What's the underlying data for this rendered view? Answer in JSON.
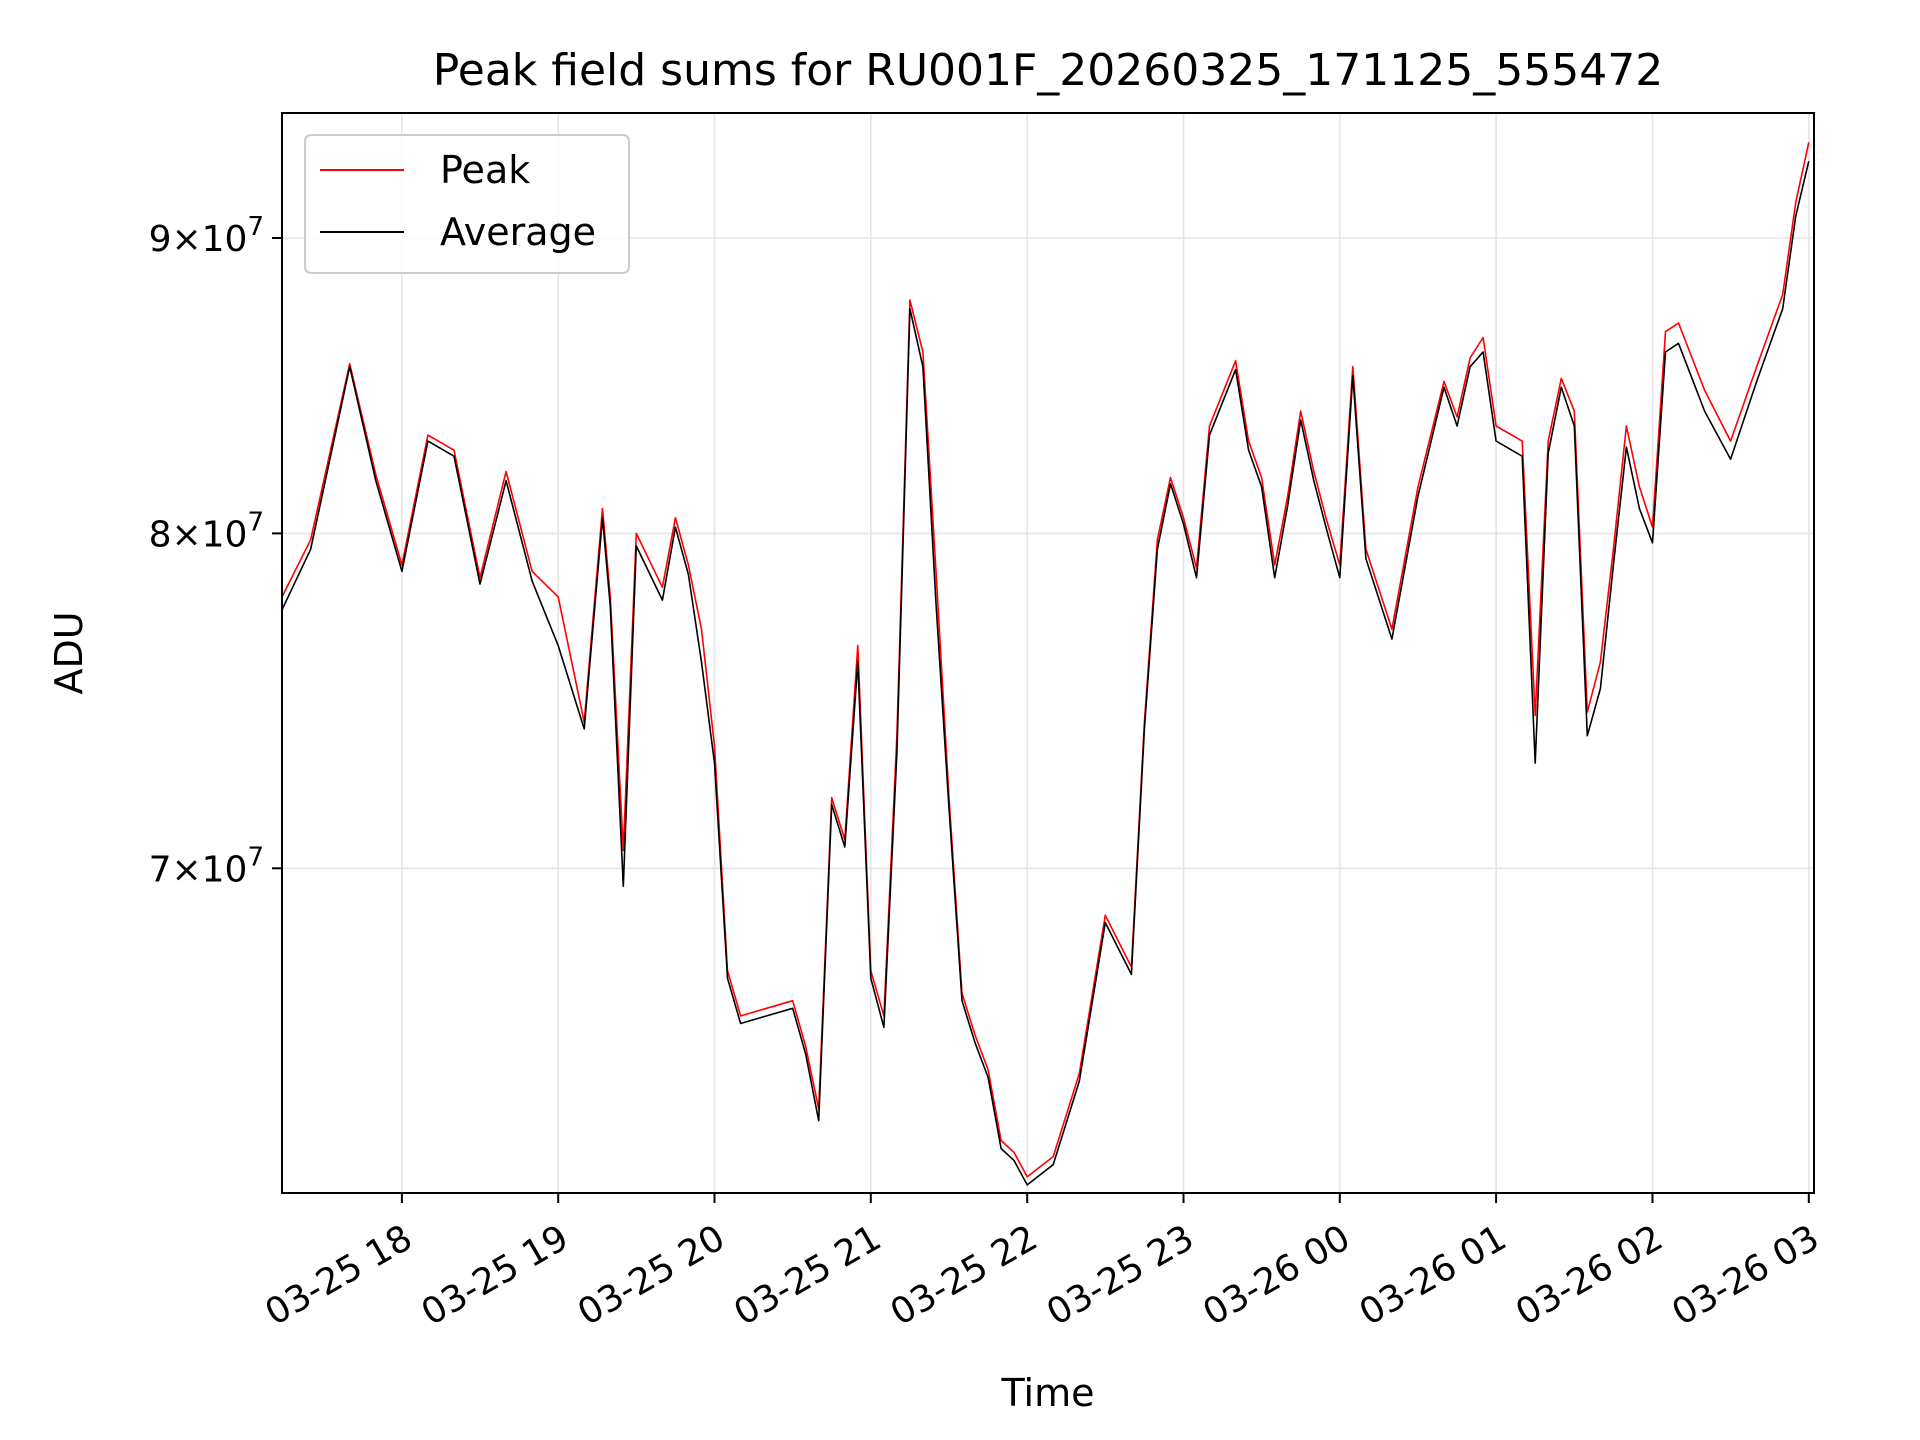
{
  "chart_data": {
    "type": "line",
    "title": "Peak field sums for RU001F_20260325_171125_555472",
    "xlabel": "Time",
    "ylabel": "ADU",
    "yscale": "log",
    "grid": true,
    "legend_position": "upper-left",
    "xlim": [
      "03-25 17:14",
      "03-26 03:02"
    ],
    "ylim": [
      61500000,
      94600000
    ],
    "x_ticks": [
      "03-25 18",
      "03-25 19",
      "03-25 20",
      "03-25 21",
      "03-25 22",
      "03-25 23",
      "03-26 00",
      "03-26 01",
      "03-26 02",
      "03-26 03"
    ],
    "y_ticks": [
      {
        "value": 70000000,
        "mantissa": "7",
        "base": "10",
        "exp": "7"
      },
      {
        "value": 80000000,
        "mantissa": "8",
        "base": "10",
        "exp": "7"
      },
      {
        "value": 90000000,
        "mantissa": "9",
        "base": "10",
        "exp": "7"
      }
    ],
    "x": [
      "03-25 17:14",
      "03-25 17:25",
      "03-25 17:40",
      "03-25 17:50",
      "03-25 18:00",
      "03-25 18:10",
      "03-25 18:20",
      "03-25 18:30",
      "03-25 18:40",
      "03-25 18:50",
      "03-25 19:00",
      "03-25 19:10",
      "03-25 19:17",
      "03-25 19:20",
      "03-25 19:25",
      "03-25 19:30",
      "03-25 19:40",
      "03-25 19:45",
      "03-25 19:50",
      "03-25 19:55",
      "03-25 20:00",
      "03-25 20:05",
      "03-25 20:10",
      "03-25 20:20",
      "03-25 20:30",
      "03-25 20:35",
      "03-25 20:40",
      "03-25 20:45",
      "03-25 20:50",
      "03-25 20:55",
      "03-25 21:00",
      "03-25 21:05",
      "03-25 21:10",
      "03-25 21:15",
      "03-25 21:20",
      "03-25 21:25",
      "03-25 21:30",
      "03-25 21:35",
      "03-25 21:40",
      "03-25 21:45",
      "03-25 21:50",
      "03-25 21:55",
      "03-25 22:00",
      "03-25 22:10",
      "03-25 22:20",
      "03-25 22:30",
      "03-25 22:40",
      "03-25 22:45",
      "03-25 22:50",
      "03-25 22:55",
      "03-25 23:00",
      "03-25 23:05",
      "03-25 23:10",
      "03-25 23:20",
      "03-25 23:25",
      "03-25 23:30",
      "03-25 23:35",
      "03-25 23:40",
      "03-25 23:45",
      "03-25 23:50",
      "03-25 23:55",
      "03-26 00:00",
      "03-26 00:05",
      "03-26 00:10",
      "03-26 00:20",
      "03-26 00:30",
      "03-26 00:40",
      "03-26 00:45",
      "03-26 00:50",
      "03-26 00:55",
      "03-26 01:00",
      "03-26 01:10",
      "03-26 01:15",
      "03-26 01:20",
      "03-26 01:25",
      "03-26 01:30",
      "03-26 01:35",
      "03-26 01:40",
      "03-26 01:45",
      "03-26 01:50",
      "03-26 01:55",
      "03-26 02:00",
      "03-26 02:05",
      "03-26 02:10",
      "03-26 02:20",
      "03-26 02:30",
      "03-26 02:40",
      "03-26 02:50",
      "03-26 02:55",
      "03-26 03:00"
    ],
    "series": [
      {
        "name": "Peak",
        "color": "#ff0000",
        "values": [
          78000000,
          79800000,
          85600000,
          81900000,
          79000000,
          83200000,
          82700000,
          78600000,
          82000000,
          78800000,
          78000000,
          74200000,
          80800000,
          78000000,
          70500000,
          80000000,
          78300000,
          80500000,
          79000000,
          77000000,
          73500000,
          67200000,
          66000000,
          66200000,
          66400000,
          65200000,
          63600000,
          72000000,
          70800000,
          76500000,
          67200000,
          66000000,
          73800000,
          87800000,
          86000000,
          78800000,
          72000000,
          66600000,
          65500000,
          64600000,
          62800000,
          62500000,
          61900000,
          62400000,
          64500000,
          68700000,
          67300000,
          74200000,
          79800000,
          81800000,
          80500000,
          78900000,
          83500000,
          85700000,
          83000000,
          81800000,
          79000000,
          81200000,
          84000000,
          82000000,
          80400000,
          79000000,
          85500000,
          79500000,
          77000000,
          81500000,
          85000000,
          83800000,
          85800000,
          86500000,
          83500000,
          83000000,
          74400000,
          83000000,
          85100000,
          84000000,
          74500000,
          76000000,
          79500000,
          83500000,
          81500000,
          80200000,
          86700000,
          87000000,
          84700000,
          83000000,
          85500000,
          88000000,
          91300000,
          93500000
        ]
      },
      {
        "name": "Average",
        "color": "#000000",
        "values": [
          77600000,
          79500000,
          85500000,
          81700000,
          78800000,
          83000000,
          82500000,
          78400000,
          81700000,
          78500000,
          76500000,
          74000000,
          80500000,
          77700000,
          69500000,
          79600000,
          77900000,
          80200000,
          78700000,
          76000000,
          73000000,
          67000000,
          65800000,
          66000000,
          66200000,
          65000000,
          63300000,
          71800000,
          70600000,
          76000000,
          67000000,
          65700000,
          73300000,
          87500000,
          85500000,
          77800000,
          71700000,
          66400000,
          65300000,
          64400000,
          62600000,
          62300000,
          61700000,
          62200000,
          64300000,
          68500000,
          67100000,
          74000000,
          79500000,
          81600000,
          80300000,
          78600000,
          83200000,
          85400000,
          82700000,
          81500000,
          78600000,
          80900000,
          83700000,
          81700000,
          80100000,
          78600000,
          85200000,
          79200000,
          76700000,
          81200000,
          84800000,
          83500000,
          85500000,
          86000000,
          83000000,
          82500000,
          73000000,
          82600000,
          84800000,
          83500000,
          73800000,
          75200000,
          79000000,
          82800000,
          80800000,
          79700000,
          86000000,
          86300000,
          84000000,
          82400000,
          85000000,
          87500000,
          90800000,
          92800000
        ]
      }
    ]
  }
}
